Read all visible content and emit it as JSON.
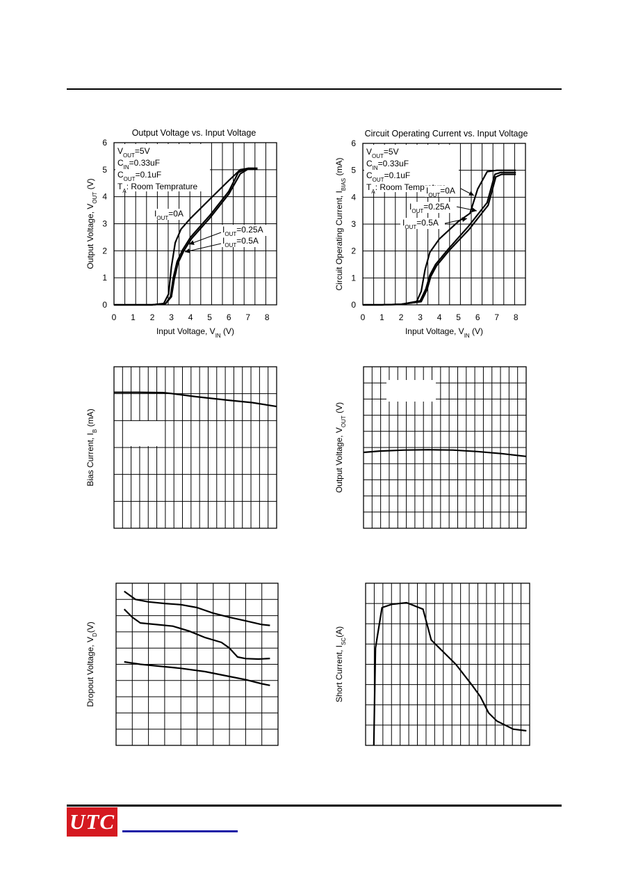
{
  "footer": {
    "logo_text": "UTC",
    "logo_color": "#d51920",
    "link_color": "#1a1aa6"
  },
  "chart_data": [
    {
      "type": "line",
      "title": "Output Voltage vs. Input Voltage",
      "xlabel": "Input Voltage, V",
      "xlabel_sub": "IN",
      "xlabel_unit": " (V)",
      "ylabel": "Output Voltage, V",
      "ylabel_sub": "OUT",
      "ylabel_unit": " (V)",
      "xlim": [
        0,
        8.5
      ],
      "ylim": [
        0,
        6
      ],
      "xticks": [
        "0",
        "1",
        "2",
        "3",
        "4",
        "5",
        "6",
        "7",
        "8"
      ],
      "yticks": [
        "0",
        "1",
        "2",
        "3",
        "4",
        "5",
        "6"
      ],
      "grid": true,
      "conditions": [
        {
          "main": "V",
          "sub": "OUT",
          "rest": "=5V"
        },
        {
          "main": "C",
          "sub": "IN",
          "rest": "=0.33uF"
        },
        {
          "main": "C",
          "sub": "OUT",
          "rest": "=0.1uF"
        },
        {
          "main": "T",
          "sub": "A",
          "rest": ": Room Temprature"
        }
      ],
      "series": [
        {
          "name": "I_OUT=0A",
          "x": [
            0,
            1,
            2,
            2.6,
            2.85,
            3.0,
            3.2,
            3.5,
            4.0,
            5.0,
            6.0,
            6.6,
            7.0,
            7.5
          ],
          "y": [
            0,
            0,
            0,
            0.05,
            0.4,
            1.4,
            2.3,
            2.8,
            3.2,
            3.9,
            4.6,
            5.0,
            5.05,
            5.05
          ]
        },
        {
          "name": "I_OUT=0.25A",
          "x": [
            0,
            1,
            2,
            2.7,
            2.95,
            3.1,
            3.3,
            3.6,
            4.0,
            5.0,
            6.0,
            6.5,
            7.0,
            7.5
          ],
          "y": [
            0,
            0,
            0,
            0.05,
            0.3,
            1.0,
            1.6,
            2.05,
            2.5,
            3.3,
            4.2,
            4.9,
            5.05,
            5.05
          ]
        },
        {
          "name": "I_OUT=0.5A",
          "x": [
            0,
            1,
            2,
            2.7,
            3.0,
            3.15,
            3.35,
            3.65,
            4.05,
            5.0,
            6.0,
            6.6,
            7.0,
            7.5
          ],
          "y": [
            0,
            0,
            0,
            0.05,
            0.3,
            0.95,
            1.55,
            2.0,
            2.45,
            3.2,
            4.1,
            4.85,
            5.02,
            5.02
          ]
        }
      ],
      "annotations": [
        {
          "main": "I",
          "sub": "OUT",
          "rest": "=0A"
        },
        {
          "main": "I",
          "sub": "OUT",
          "rest": "=0.25A"
        },
        {
          "main": "I",
          "sub": "OUT",
          "rest": "=0.5A"
        }
      ]
    },
    {
      "type": "line",
      "title": "Circuit Operating Current vs. Input Voltage",
      "xlabel": "Input Voltage, V",
      "xlabel_sub": "IN",
      "xlabel_unit": " (V)",
      "ylabel": "Circuit Operating Current, I",
      "ylabel_sub": "BIAS",
      "ylabel_unit": " (mA)",
      "xlim": [
        0,
        8.5
      ],
      "ylim": [
        0,
        6
      ],
      "xticks": [
        "0",
        "1",
        "2",
        "3",
        "4",
        "5",
        "6",
        "7",
        "8"
      ],
      "yticks": [
        "0",
        "1",
        "2",
        "3",
        "4",
        "5",
        "6"
      ],
      "grid": true,
      "conditions": [
        {
          "main": "V",
          "sub": "OUT",
          "rest": "=5V"
        },
        {
          "main": "C",
          "sub": "IN",
          "rest": "=0.33uF"
        },
        {
          "main": "C",
          "sub": "OUT",
          "rest": "=0.1uF"
        },
        {
          "main": "T",
          "sub": "A",
          "rest": ": Room Temprature"
        }
      ],
      "series": [
        {
          "name": "I_OUT=0A",
          "x": [
            0,
            1,
            2,
            2.8,
            3.05,
            3.25,
            3.5,
            4.0,
            5.0,
            5.6,
            6.0,
            6.5,
            7.0,
            8.0
          ],
          "y": [
            0,
            0,
            0.02,
            0.1,
            0.5,
            1.3,
            1.95,
            2.45,
            3.1,
            3.4,
            4.3,
            4.95,
            5.0,
            5.0
          ]
        },
        {
          "name": "I_OUT=0.25A",
          "x": [
            0,
            1,
            2,
            3.0,
            3.3,
            3.5,
            3.8,
            4.5,
            5.5,
            6.5,
            6.9,
            7.2,
            8.0
          ],
          "y": [
            0,
            0,
            0.02,
            0.15,
            0.6,
            1.1,
            1.5,
            2.1,
            2.9,
            3.8,
            4.85,
            4.92,
            4.92
          ]
        },
        {
          "name": "I_OUT=0.5A",
          "x": [
            0,
            1,
            2,
            3.05,
            3.35,
            3.55,
            3.85,
            4.55,
            5.55,
            6.55,
            6.95,
            7.25,
            8.0
          ],
          "y": [
            0,
            0,
            0.02,
            0.12,
            0.55,
            1.05,
            1.45,
            2.05,
            2.8,
            3.7,
            4.75,
            4.85,
            4.85
          ]
        }
      ],
      "annotations": [
        {
          "main": "I",
          "sub": "OUT",
          "rest": "=0A"
        },
        {
          "main": "I",
          "sub": "OUT",
          "rest": "=0.25A"
        },
        {
          "main": "I",
          "sub": "OUT",
          "rest": "=0.5A"
        }
      ]
    },
    {
      "type": "line",
      "ylabel": "Bias Current, I",
      "ylabel_sub": "B",
      "ylabel_unit": " (mA)",
      "xlim": [
        0,
        1
      ],
      "ylim": [
        0,
        1
      ],
      "grid": true,
      "series": [
        {
          "x": [
            0.0,
            0.15,
            0.3,
            0.35,
            0.5,
            0.7,
            0.85,
            1.0
          ],
          "y": [
            0.842,
            0.842,
            0.84,
            0.835,
            0.815,
            0.793,
            0.778,
            0.754
          ]
        }
      ]
    },
    {
      "type": "line",
      "ylabel": "Output Voltage, V",
      "ylabel_sub": "OUT",
      "ylabel_unit": " (V)",
      "xlim": [
        0,
        1
      ],
      "ylim": [
        0,
        1
      ],
      "grid": true,
      "series": [
        {
          "x": [
            0.0,
            0.1,
            0.25,
            0.4,
            0.55,
            0.7,
            0.85,
            1.0
          ],
          "y": [
            0.47,
            0.478,
            0.484,
            0.486,
            0.484,
            0.475,
            0.462,
            0.445
          ]
        }
      ]
    },
    {
      "type": "line",
      "ylabel": "Dropout Voltage, V",
      "ylabel_sub": "D",
      "ylabel_unit": "(V)",
      "xlim": [
        0,
        1
      ],
      "ylim": [
        0,
        1
      ],
      "grid": true,
      "series": [
        {
          "x": [
            0.05,
            0.12,
            0.2,
            0.3,
            0.4,
            0.5,
            0.6,
            0.7,
            0.8,
            0.9,
            0.95
          ],
          "y": [
            0.95,
            0.9,
            0.885,
            0.875,
            0.868,
            0.85,
            0.815,
            0.79,
            0.768,
            0.745,
            0.74
          ]
        },
        {
          "x": [
            0.05,
            0.1,
            0.15,
            0.25,
            0.35,
            0.45,
            0.55,
            0.65,
            0.7,
            0.75,
            0.8,
            0.88,
            0.95
          ],
          "y": [
            0.84,
            0.79,
            0.755,
            0.745,
            0.735,
            0.705,
            0.665,
            0.635,
            0.6,
            0.545,
            0.535,
            0.532,
            0.536
          ]
        },
        {
          "x": [
            0.05,
            0.15,
            0.3,
            0.4,
            0.55,
            0.7,
            0.8,
            0.9,
            0.95
          ],
          "y": [
            0.515,
            0.5,
            0.485,
            0.475,
            0.455,
            0.425,
            0.405,
            0.38,
            0.37
          ]
        }
      ]
    },
    {
      "type": "line",
      "ylabel": "Short Current, I",
      "ylabel_sub": "SC",
      "ylabel_unit": "(A)",
      "xlim": [
        0,
        1
      ],
      "ylim": [
        0,
        1
      ],
      "grid": true,
      "series": [
        {
          "x": [
            0.05,
            0.06,
            0.1,
            0.16,
            0.25,
            0.35,
            0.4,
            0.45,
            0.55,
            0.65,
            0.7,
            0.75,
            0.8,
            0.9,
            0.98
          ],
          "y": [
            0.0,
            0.6,
            0.85,
            0.87,
            0.88,
            0.84,
            0.65,
            0.6,
            0.5,
            0.37,
            0.3,
            0.2,
            0.15,
            0.1,
            0.09
          ]
        }
      ]
    }
  ]
}
